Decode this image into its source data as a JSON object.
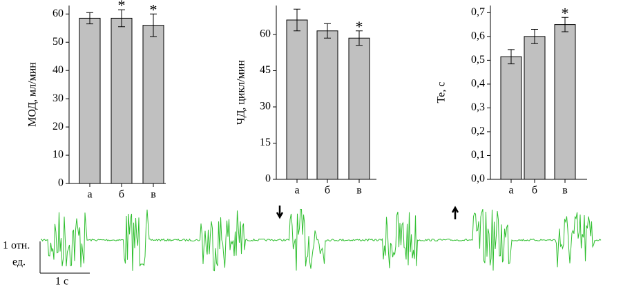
{
  "chart_data": [
    {
      "type": "bar",
      "y_label": "МОД, мл/мин",
      "categories": [
        "а",
        "б",
        "в"
      ],
      "series": [
        {
          "color": "#c0c0c0",
          "values": [
            58.5,
            58.5,
            56
          ],
          "errors": [
            2,
            3,
            4
          ]
        }
      ],
      "ylim": [
        0,
        63
      ],
      "yticks": [
        0,
        10,
        20,
        30,
        40,
        50,
        60
      ],
      "annotations": [
        {
          "x": "б",
          "text": "*"
        },
        {
          "x": "в",
          "text": "*"
        }
      ]
    },
    {
      "type": "bar",
      "y_label": "ЧД, цикл/мин",
      "categories": [
        "а",
        "б",
        "в"
      ],
      "series": [
        {
          "color": "#c0c0c0",
          "values": [
            66,
            61.5,
            58.5
          ],
          "errors": [
            4.5,
            3,
            3
          ]
        }
      ],
      "ylim": [
        0,
        72
      ],
      "yticks": [
        0,
        15,
        30,
        45,
        60
      ],
      "annotations": [
        {
          "x": "в",
          "text": "*"
        }
      ]
    },
    {
      "type": "bar",
      "y_label": "Te, с",
      "categories": [
        "а",
        "б",
        "в"
      ],
      "series": [
        {
          "color": "#c0c0c0",
          "values": [
            0.515,
            0.6,
            0.65
          ],
          "errors": [
            0.03,
            0.03,
            0.03
          ]
        }
      ],
      "ylim": [
        0,
        0.73
      ],
      "yticks": [
        {
          "value": 0,
          "label": "0,0"
        },
        {
          "value": 0.1,
          "label": "0,1"
        },
        {
          "value": 0.2,
          "label": "0,2"
        },
        {
          "value": 0.3,
          "label": "0,3"
        },
        {
          "value": 0.4,
          "label": "0,4"
        },
        {
          "value": 0.5,
          "label": "0,5"
        },
        {
          "value": 0.6,
          "label": "0,6"
        },
        {
          "value": 0.7,
          "label": "0,7"
        }
      ],
      "annotations": [
        {
          "x": "в",
          "text": "*"
        }
      ]
    }
  ],
  "trace": {
    "y_scale_label": [
      "1 отн.",
      "ед."
    ],
    "x_scale_label": "1 с"
  }
}
